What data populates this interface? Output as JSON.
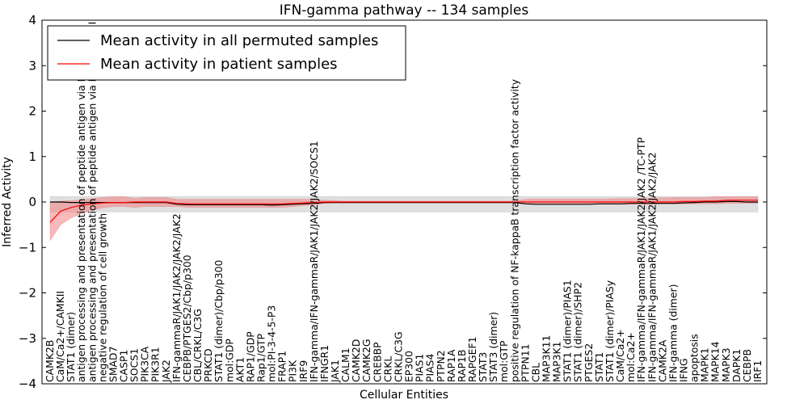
{
  "chart_data": {
    "type": "line",
    "title": "IFN-gamma pathway -- 134 samples",
    "xlabel": "Cellular Entities",
    "ylabel": "Inferred Activity",
    "ylim": [
      -4,
      4
    ],
    "yticks": [
      -4,
      -3,
      -2,
      -1,
      0,
      1,
      2,
      3,
      4
    ],
    "ytick_labels": [
      "−4",
      "−3",
      "−2",
      "−1",
      "0",
      "1",
      "2",
      "3",
      "4"
    ],
    "legend_position": "top-left",
    "categories": [
      "CAMK2B",
      "CaM/Ca2+/CAMKII",
      "STAT1 (dimer)",
      "antigen processing and presentation of peptide antigen via MHC class I",
      "antigen processing and presentation of peptide antigen via MHC class II",
      "negative regulation of cell growth",
      "SMAD7",
      "CASP1",
      "SOCS1",
      "PIK3CA",
      "PIK3R1",
      "JAK2",
      "IFN-gammaR/JAK1/JAK2/JAK2/JAK2",
      "CEBPB/PTGES2/Cbp/p300",
      "CBL/CRKL/C3G",
      "PRKCD",
      "STAT1 (dimer)/Cbp/p300",
      "mol:GDP",
      "AKT1",
      "RAP1/GDP",
      "Rap1/GTP",
      "mol:PI-3-4-5-P3",
      "FRAP1",
      "PI3K",
      "IRF9",
      "IFN-gamma/IFN-gammaR/JAK1/JAK2/JAK2/SOCS1",
      "IFNGR1",
      "JAK1",
      "CALM1",
      "CAMK2D",
      "CAMK2G",
      "CREBBP",
      "CRKL",
      "CRKL/C3G",
      "EP300",
      "PIAS1",
      "PIAS4",
      "PTPN2",
      "RAP1A",
      "RAP1B",
      "RAPGEF1",
      "STAT3",
      "STAT3 (dimer)",
      "mol:GTP",
      "positive regulation of NF-kappaB transcription factor activity",
      "PTPN11",
      "CBL",
      "MAP3K11",
      "MAP3K1",
      "STAT1 (dimer)/PIAS1",
      "STAT1 (dimer)/SHP2",
      "PTGES2",
      "STAT1",
      "STAT1 (dimer)/PIASy",
      "CaM/Ca2+",
      "mol:Ca2+",
      "IFN-gamma/IFN-gammaR/JAK1/JAK2/JAK2  /TC-PTP",
      "IFN-gamma/IFN-gammaR/JAK1/JAK2/JAK2/JAK2",
      "CAMK2A",
      "IFN-gamma (dimer)",
      "IFNG",
      "apoptosis",
      "MAPK1",
      "MAPK14",
      "MAPK3",
      "DAPK1",
      "CEBPB",
      "IRF1"
    ],
    "series": [
      {
        "name": "Mean activity in all permuted samples",
        "color": "#000000",
        "mean": [
          0.0,
          0.0,
          -0.01,
          -0.01,
          -0.01,
          -0.01,
          -0.01,
          -0.01,
          -0.01,
          -0.01,
          -0.01,
          -0.01,
          -0.05,
          -0.06,
          -0.06,
          -0.06,
          -0.06,
          -0.06,
          -0.06,
          -0.06,
          -0.06,
          -0.07,
          -0.06,
          -0.05,
          -0.04,
          -0.03,
          -0.01,
          -0.01,
          -0.01,
          -0.01,
          -0.01,
          -0.01,
          -0.01,
          -0.01,
          -0.01,
          -0.01,
          -0.01,
          -0.01,
          -0.01,
          -0.01,
          -0.01,
          -0.01,
          -0.01,
          -0.01,
          -0.01,
          -0.04,
          -0.05,
          -0.05,
          -0.05,
          -0.05,
          -0.05,
          -0.05,
          -0.04,
          -0.04,
          -0.04,
          -0.03,
          -0.03,
          -0.03,
          -0.03,
          -0.03,
          -0.02,
          -0.01,
          0.0,
          0.0,
          0.01,
          0.01,
          0.0,
          0.0
        ],
        "low": [
          -0.22,
          -0.22,
          -0.22,
          -0.22,
          -0.22,
          -0.22,
          -0.22,
          -0.22,
          -0.22,
          -0.22,
          -0.22,
          -0.22,
          -0.22,
          -0.22,
          -0.22,
          -0.22,
          -0.22,
          -0.22,
          -0.22,
          -0.22,
          -0.22,
          -0.22,
          -0.22,
          -0.22,
          -0.22,
          -0.22,
          -0.22,
          -0.22,
          -0.22,
          -0.22,
          -0.22,
          -0.22,
          -0.22,
          -0.22,
          -0.22,
          -0.22,
          -0.22,
          -0.22,
          -0.22,
          -0.22,
          -0.22,
          -0.22,
          -0.22,
          -0.22,
          -0.22,
          -0.22,
          -0.22,
          -0.22,
          -0.22,
          -0.22,
          -0.22,
          -0.22,
          -0.22,
          -0.22,
          -0.22,
          -0.22,
          -0.22,
          -0.22,
          -0.22,
          -0.22,
          -0.22,
          -0.22,
          -0.22,
          -0.22,
          -0.22,
          -0.22,
          -0.22,
          -0.22
        ],
        "high": [
          0.12,
          0.12,
          0.12,
          0.12,
          0.12,
          0.12,
          0.12,
          0.12,
          0.12,
          0.12,
          0.12,
          0.12,
          0.12,
          0.12,
          0.12,
          0.12,
          0.12,
          0.12,
          0.12,
          0.12,
          0.12,
          0.12,
          0.12,
          0.12,
          0.12,
          0.12,
          0.12,
          0.12,
          0.12,
          0.12,
          0.12,
          0.12,
          0.12,
          0.12,
          0.12,
          0.12,
          0.12,
          0.12,
          0.12,
          0.12,
          0.12,
          0.12,
          0.12,
          0.12,
          0.12,
          0.12,
          0.12,
          0.12,
          0.12,
          0.12,
          0.12,
          0.12,
          0.12,
          0.12,
          0.12,
          0.12,
          0.12,
          0.12,
          0.12,
          0.12,
          0.12,
          0.12,
          0.12,
          0.12,
          0.12,
          0.12,
          0.12,
          0.12
        ]
      },
      {
        "name": "Mean activity in patient samples",
        "color": "#ff0000",
        "mean": [
          -0.45,
          -0.2,
          -0.12,
          -0.07,
          -0.04,
          -0.02,
          -0.01,
          -0.01,
          0.0,
          0.0,
          0.0,
          0.0,
          -0.03,
          -0.04,
          -0.04,
          -0.04,
          -0.04,
          -0.04,
          -0.04,
          -0.04,
          -0.04,
          -0.04,
          -0.04,
          -0.03,
          -0.02,
          -0.01,
          0.0,
          0.0,
          0.0,
          0.0,
          0.0,
          0.0,
          0.0,
          0.0,
          0.0,
          0.0,
          0.0,
          0.0,
          0.0,
          0.0,
          0.0,
          0.0,
          0.0,
          0.0,
          0.0,
          0.0,
          0.0,
          0.0,
          0.0,
          0.0,
          0.0,
          0.0,
          0.0,
          0.0,
          0.0,
          0.0,
          0.0,
          0.0,
          0.0,
          0.0,
          0.01,
          0.01,
          0.02,
          0.02,
          0.04,
          0.04,
          0.04,
          0.04
        ],
        "low": [
          -0.85,
          -0.5,
          -0.35,
          -0.25,
          -0.18,
          -0.13,
          -0.1,
          -0.1,
          -0.12,
          -0.1,
          -0.1,
          -0.1,
          -0.1,
          -0.12,
          -0.12,
          -0.12,
          -0.12,
          -0.12,
          -0.12,
          -0.12,
          -0.12,
          -0.12,
          -0.12,
          -0.1,
          -0.08,
          -0.06,
          -0.03,
          -0.02,
          -0.02,
          -0.02,
          -0.02,
          -0.02,
          -0.02,
          -0.02,
          -0.02,
          -0.02,
          -0.02,
          -0.02,
          -0.02,
          -0.02,
          -0.02,
          -0.02,
          -0.02,
          -0.02,
          -0.02,
          -0.05,
          -0.05,
          -0.05,
          -0.05,
          -0.05,
          -0.05,
          -0.05,
          -0.05,
          -0.05,
          -0.05,
          -0.05,
          -0.05,
          -0.05,
          -0.04,
          -0.04,
          -0.04,
          -0.04,
          -0.04,
          -0.04,
          -0.03,
          -0.03,
          -0.03,
          -0.03
        ],
        "high": [
          0.0,
          0.02,
          0.03,
          0.05,
          0.08,
          0.1,
          0.12,
          0.12,
          0.08,
          0.1,
          0.1,
          0.1,
          0.06,
          0.06,
          0.06,
          0.06,
          0.06,
          0.06,
          0.06,
          0.06,
          0.06,
          0.06,
          0.06,
          0.06,
          0.06,
          0.06,
          0.04,
          0.03,
          0.02,
          0.02,
          0.02,
          0.02,
          0.02,
          0.02,
          0.02,
          0.02,
          0.02,
          0.02,
          0.02,
          0.02,
          0.02,
          0.02,
          0.02,
          0.02,
          0.02,
          0.06,
          0.07,
          0.07,
          0.07,
          0.07,
          0.07,
          0.07,
          0.07,
          0.07,
          0.08,
          0.08,
          0.08,
          0.09,
          0.09,
          0.1,
          0.1,
          0.1,
          0.1,
          0.12,
          0.12,
          0.12,
          0.12,
          0.12
        ]
      }
    ]
  }
}
